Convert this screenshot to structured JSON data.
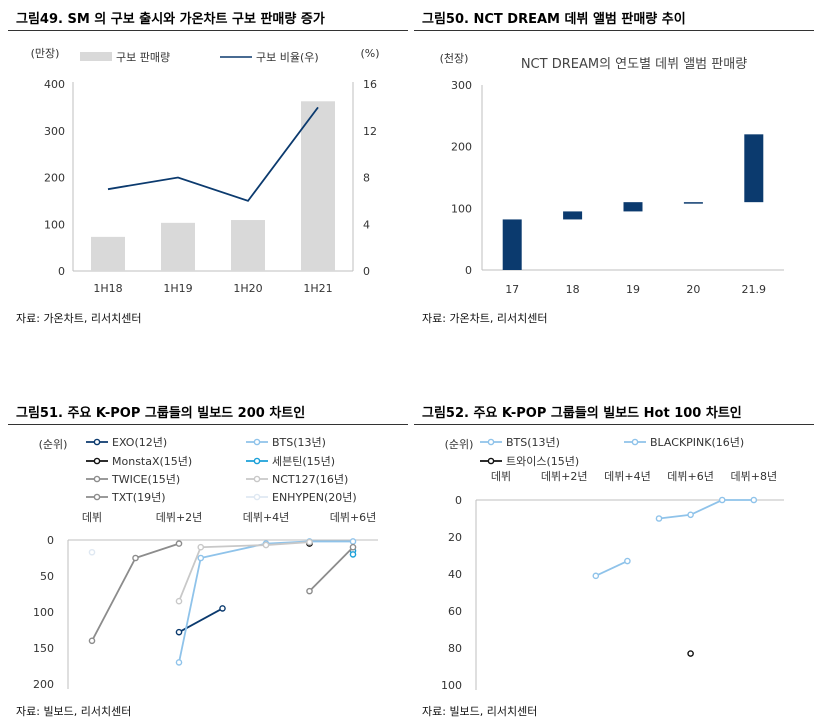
{
  "panels": [
    {
      "title": "그림49. SM 의 구보 출시와 가온차트 구보 판매량 증가",
      "source": "자료: 가온차트, 리서치센터"
    },
    {
      "title": "그림50. NCT DREAM 데뷔 앨범 판매량 추이",
      "source": "자료: 가온차트, 리서치센터"
    },
    {
      "title": "그림51. 주요 K-POP 그룹들의 빌보드 200 차트인",
      "source": "자료: 빌보드, 리서치센터"
    },
    {
      "title": "그림52. 주요 K-POP 그룹들의 빌보드 Hot 100 차트인",
      "source": "자료: 빌보드, 리서치센터"
    }
  ],
  "colors": {
    "navy": "#0b3a6e",
    "gray_bar": "#d9d9d9",
    "light_blue": "#8fc3ea",
    "teal": "#1ba0d8",
    "gray": "#8c8c8c",
    "light_gray": "#c8c8c8",
    "pale": "#dfe8f2",
    "black": "#111111"
  },
  "chart_data": [
    {
      "type": "bar",
      "categories": [
        "1H18",
        "1H19",
        "1H20",
        "1H21"
      ],
      "y_left_unit": "(만장)",
      "y_right_unit": "(%)",
      "ylim_left": [
        0,
        400
      ],
      "yticks_left": [
        "0",
        "100",
        "200",
        "300",
        "400"
      ],
      "ylim_right": [
        0,
        16
      ],
      "yticks_right": [
        "0",
        "4",
        "8",
        "12",
        "16"
      ],
      "series": [
        {
          "name": "구보 판매량",
          "type": "bar",
          "axis": "left",
          "values": [
            73,
            103,
            109,
            363
          ]
        },
        {
          "name": "구보 비율(우)",
          "type": "line",
          "axis": "right",
          "values": [
            7.0,
            8.0,
            6.0,
            14.0
          ]
        }
      ]
    },
    {
      "type": "bar",
      "subtype": "waterfall",
      "title": "NCT DREAM의 연도별 데뷔 앨범 판매량",
      "y_unit": "(천장)",
      "categories": [
        "17",
        "18",
        "19",
        "20",
        "21.9"
      ],
      "ylim": [
        0,
        300
      ],
      "yticks": [
        "0",
        "100",
        "200",
        "300"
      ],
      "ranges": [
        [
          0,
          82
        ],
        [
          82,
          95
        ],
        [
          95,
          110
        ],
        [
          108,
          110
        ],
        [
          110,
          220
        ]
      ]
    },
    {
      "type": "line",
      "y_unit": "(순위)",
      "x_labels": [
        "데뷔",
        "데뷔+2년",
        "데뷔+4년",
        "데뷔+6년"
      ],
      "yticks": [
        "0",
        "50",
        "100",
        "150",
        "200"
      ],
      "ylim": [
        200,
        0
      ],
      "xlim": [
        0,
        6.5
      ],
      "series": [
        {
          "name": "EXO(12년)",
          "x": [
            2,
            3
          ],
          "y": [
            128,
            95
          ]
        },
        {
          "name": "BTS(13년)",
          "x": [
            2,
            2.5,
            4,
            5,
            6
          ],
          "y": [
            170,
            25,
            5,
            2,
            2
          ]
        },
        {
          "name": "MonstaX(15년)",
          "x": [
            5
          ],
          "y": [
            5
          ]
        },
        {
          "name": "세븐틴(15년)",
          "x": [
            6,
            6
          ],
          "y": [
            15,
            20
          ]
        },
        {
          "name": "TWICE(15년)",
          "x": [
            5,
            6
          ],
          "y": [
            71,
            10
          ]
        },
        {
          "name": "NCT127(16년)",
          "x": [
            2,
            2.5,
            4,
            5
          ],
          "y": [
            85,
            10,
            7,
            3
          ]
        },
        {
          "name": "TXT(19년)",
          "x": [
            0,
            1,
            2
          ],
          "y": [
            140,
            25,
            5
          ]
        },
        {
          "name": "ENHYPEN(20년)",
          "x": [
            0
          ],
          "y": [
            17
          ]
        }
      ]
    },
    {
      "type": "line",
      "y_unit": "(순위)",
      "x_labels": [
        "데뷔",
        "데뷔+2년",
        "데뷔+4년",
        "데뷔+6년",
        "데뷔+8년"
      ],
      "yticks": [
        "0",
        "20",
        "40",
        "60",
        "80",
        "100"
      ],
      "ylim": [
        100,
        0
      ],
      "xlim": [
        0,
        8.5
      ],
      "series": [
        {
          "name": "BTS(13년)",
          "x": [
            5,
            6,
            7,
            8
          ],
          "y": [
            10,
            8,
            0,
            0
          ]
        },
        {
          "name": "BLACKPINK(16년)",
          "x": [
            3,
            4
          ],
          "y": [
            41,
            33
          ]
        },
        {
          "name": "트와이스(15년)",
          "x": [
            6
          ],
          "y": [
            83
          ]
        }
      ]
    }
  ]
}
